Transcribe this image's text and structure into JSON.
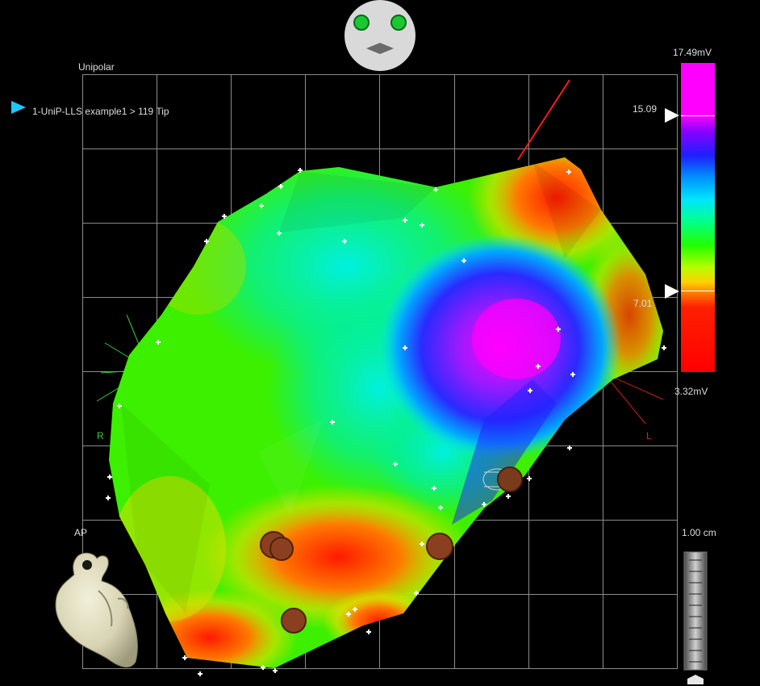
{
  "view": {
    "map_type": "Unipolar",
    "orientation_label": "AP"
  },
  "catheter": {
    "label": "1-UniP-LLS example1 > 119 Tip",
    "arrow_color": "#1ec8ff"
  },
  "color_scale": {
    "max_label": "17.49mV",
    "min_label": "3.32mV",
    "upper_threshold": "15.09",
    "lower_threshold": "7.01",
    "colors": [
      "#ff00ff",
      "#1f1fff",
      "#00e5ff",
      "#22ff00",
      "#ffd000",
      "#ff0000"
    ]
  },
  "axis_markers": {
    "right": "R",
    "left": "L",
    "right_color": "#37d23c",
    "left_color": "#e02020"
  },
  "scale_bar": {
    "label": "1.00 cm"
  },
  "icons": {
    "orientation_head": "head-orientation-icon",
    "heart_model": "heart-model-icon",
    "catheter_pointer": "catheter-arrow-icon"
  }
}
